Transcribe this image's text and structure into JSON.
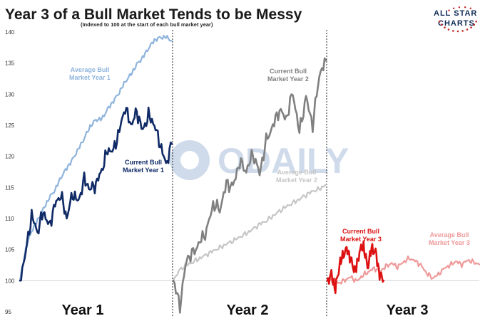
{
  "title": "Year 3 of a Bull Market Tends to be Messy",
  "subtitle": "(Indexed to 100 at the start of each bull market year)",
  "logo": {
    "line1": "ALL STAR",
    "line2": "CHARTS",
    "star_color": "#c62828"
  },
  "watermark": "ODAILY",
  "chart_data": {
    "type": "line",
    "ylim": [
      95,
      140
    ],
    "yticks": [
      95,
      100,
      105,
      110,
      115,
      120,
      125,
      130,
      135,
      140
    ],
    "baseline": 100,
    "panels": [
      {
        "label": "Year 1",
        "series": [
          {
            "name": "Average Bull Market Year 1",
            "color": "#8fb4dc",
            "start_pct": 0,
            "end_pct": 100,
            "values": [
              100.0,
              105.2,
              108.0,
              109.7,
              111.5,
              113.3,
              114.6,
              116.6,
              118.1,
              119.5,
              121.2,
              122.9,
              124.8,
              125.9,
              126.0,
              127.6,
              128.9,
              130.3,
              132.0,
              133.2,
              134.8,
              135.9,
              137.4,
              138.7,
              139.1,
              139.2,
              138.6
            ]
          },
          {
            "name": "Current Bull Market Year 1",
            "color": "#0f2a66",
            "start_pct": 0,
            "end_pct": 100,
            "values": [
              100.0,
              104.7,
              110.5,
              107.8,
              111.2,
              108.7,
              112.3,
              113.8,
              110.1,
              114.0,
              112.7,
              116.3,
              114.7,
              115.5,
              117.8,
              121.0,
              120.9,
              124.1,
              127.9,
              125.0,
              127.2,
              124.1,
              126.6,
              125.1,
              121.9,
              118.7,
              122.0
            ]
          }
        ]
      },
      {
        "label": "Year 2",
        "series": [
          {
            "name": "Average Bull Market Year 2",
            "color": "#c6c6c6",
            "start_pct": 0,
            "end_pct": 100,
            "values": [
              100.0,
              101.8,
              102.5,
              103.0,
              103.6,
              104.2,
              104.8,
              105.3,
              105.9,
              106.4,
              107.0,
              107.6,
              108.3,
              109.1,
              109.6,
              110.4,
              111.2,
              111.9,
              112.5,
              113.1,
              113.8,
              114.4,
              114.7,
              115.5
            ]
          },
          {
            "name": "Current Bull Market Year 2",
            "color": "#808080",
            "start_pct": 0,
            "end_pct": 100,
            "values": [
              100.0,
              96.0,
              103.5,
              104.5,
              106.2,
              108.0,
              112.3,
              111.4,
              115.6,
              115.2,
              119.1,
              117.6,
              120.5,
              117.2,
              122.5,
              124.9,
              127.5,
              126.0,
              130.3,
              123.9,
              129.5,
              125.0,
              133.1,
              135.4
            ]
          }
        ]
      },
      {
        "label": "Year 3",
        "series": [
          {
            "name": "Average Bull Market Year 3",
            "color": "#ee9a9a",
            "start_pct": 0,
            "end_pct": 100,
            "values": [
              100.0,
              100.2,
              99.6,
              100.1,
              100.6,
              99.9,
              100.8,
              101.4,
              102.0,
              101.5,
              102.3,
              102.8,
              102.2,
              103.0,
              103.6,
              103.2,
              102.5,
              101.2,
              100.4,
              101.0,
              102.0,
              102.5,
              103.1,
              102.6,
              103.3,
              103.0,
              102.6
            ]
          },
          {
            "name": "Current Bull Market Year 3",
            "color": "#dd1111",
            "start_pct": 0,
            "end_pct": 37,
            "values": [
              100.0,
              101.0,
              98.6,
              102.5,
              104.3,
              105.1,
              103.0,
              101.4,
              104.7,
              105.6,
              102.1,
              105.2,
              104.6,
              101.1,
              100.0
            ]
          }
        ]
      }
    ],
    "labels": [
      {
        "text": [
          "Average Bull",
          "Market Year 1"
        ],
        "color": "#8fb4dc"
      },
      {
        "text": [
          "Current Bull",
          "Market Year 1"
        ],
        "color": "#0f2a66"
      },
      {
        "text": [
          "Current Bull",
          "Market Year 2"
        ],
        "color": "#808080"
      },
      {
        "text": [
          "Average Bull",
          "Market Year 2"
        ],
        "color": "#c6c6c6"
      },
      {
        "text": [
          "Current Bull",
          "Market Year 3"
        ],
        "color": "#dd1111"
      },
      {
        "text": [
          "Average Bull",
          "Market Year 3"
        ],
        "color": "#ee9a9a"
      }
    ]
  }
}
